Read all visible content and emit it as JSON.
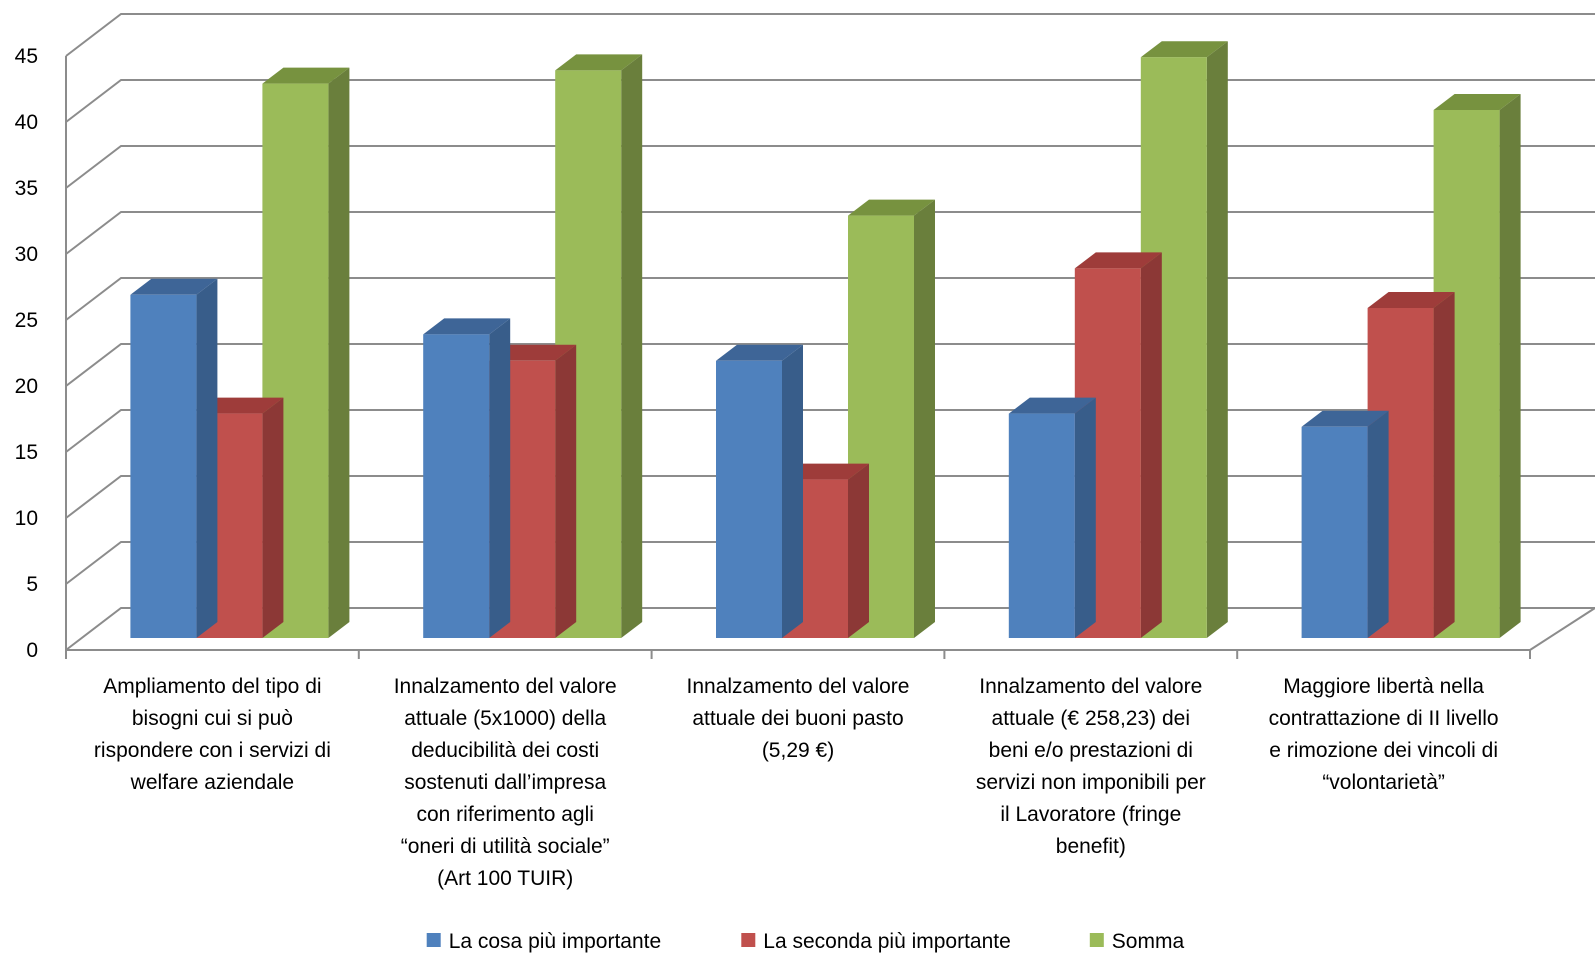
{
  "chart_data": {
    "type": "bar",
    "style": "3d-clustered-column",
    "categories": [
      [
        "Ampliamento del tipo di",
        "bisogni cui si può",
        "rispondere con i servizi di",
        "welfare aziendale"
      ],
      [
        "Innalzamento del valore",
        "attuale (5x1000) della",
        "deducibilità dei costi",
        "sostenuti dall’impresa",
        "con riferimento agli",
        "“oneri di utilità sociale”",
        "(Art 100 TUIR)"
      ],
      [
        "Innalzamento del valore",
        "attuale dei buoni pasto",
        "(5,29 €)"
      ],
      [
        "Innalzamento del valore",
        "attuale (€ 258,23) dei",
        "beni e/o prestazioni di",
        "servizi non imponibili per",
        "il Lavoratore (fringe",
        "benefit)"
      ],
      [
        "Maggiore libertà nella",
        "contrattazione di II livello",
        "e rimozione dei vincoli di",
        "“volontarietà”"
      ]
    ],
    "series": [
      {
        "name": "La cosa più importante",
        "values": [
          26,
          23,
          21,
          17,
          16
        ],
        "color": "#4F81BD",
        "side_color": "#385D8A",
        "top_color": "#3E6597"
      },
      {
        "name": "La seconda più importante",
        "values": [
          17,
          21,
          12,
          28,
          25
        ],
        "color": "#C0504D",
        "side_color": "#8C3836",
        "top_color": "#9E3C3A"
      },
      {
        "name": "Somma",
        "values": [
          42,
          43,
          32,
          44,
          40
        ],
        "color": "#9BBB59",
        "side_color": "#6A7F3C",
        "top_color": "#77923F"
      }
    ],
    "ylim": [
      0,
      45
    ],
    "yticks": [
      0,
      5,
      10,
      15,
      20,
      25,
      30,
      35,
      40,
      45
    ],
    "grid": true,
    "legend_position": "bottom",
    "title": "",
    "xlabel": "",
    "ylabel": ""
  }
}
